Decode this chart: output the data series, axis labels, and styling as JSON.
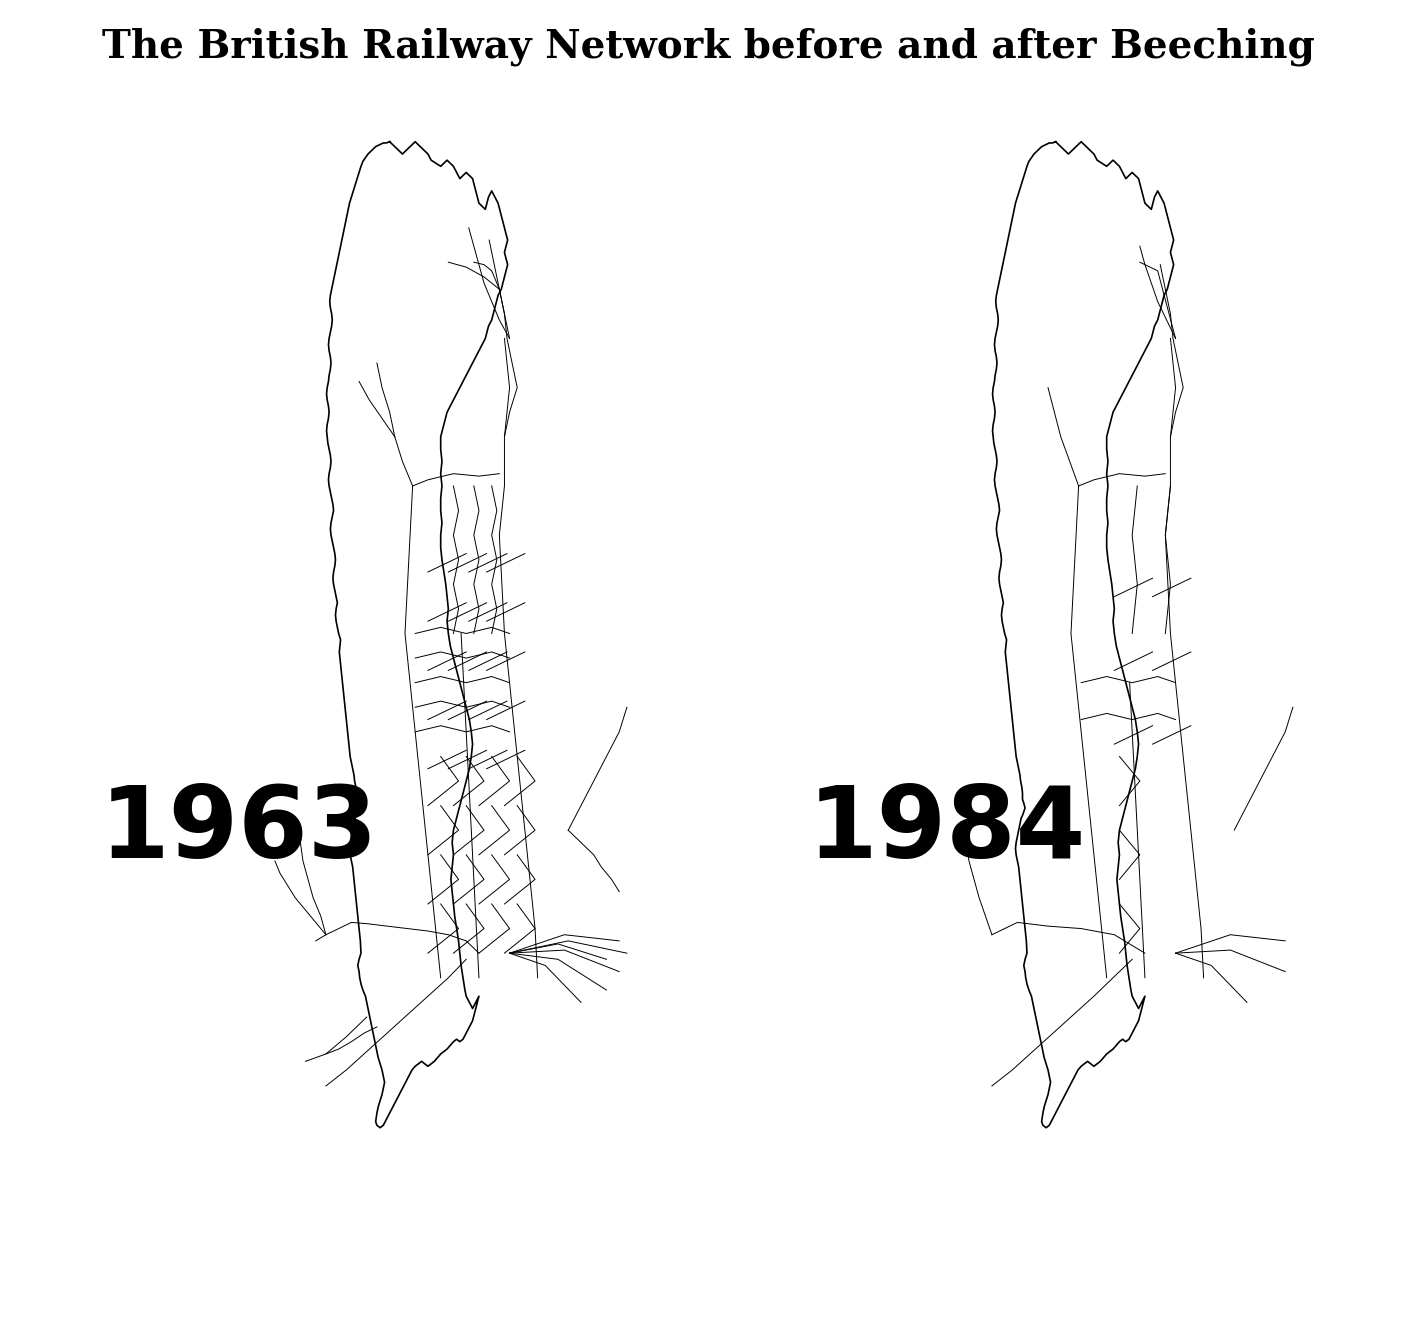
{
  "title": "The British Railway Network before and after Beeching",
  "title_fontsize": 28,
  "title_bg_color": "#d0d0d0",
  "label_1963": "1963",
  "label_1984": "1984",
  "label_fontsize": 72,
  "background_color": "#ffffff",
  "line_color": "#000000",
  "line_width": 1.2,
  "fig_width": 14.17,
  "fig_height": 13.22,
  "title_font_weight": "bold"
}
